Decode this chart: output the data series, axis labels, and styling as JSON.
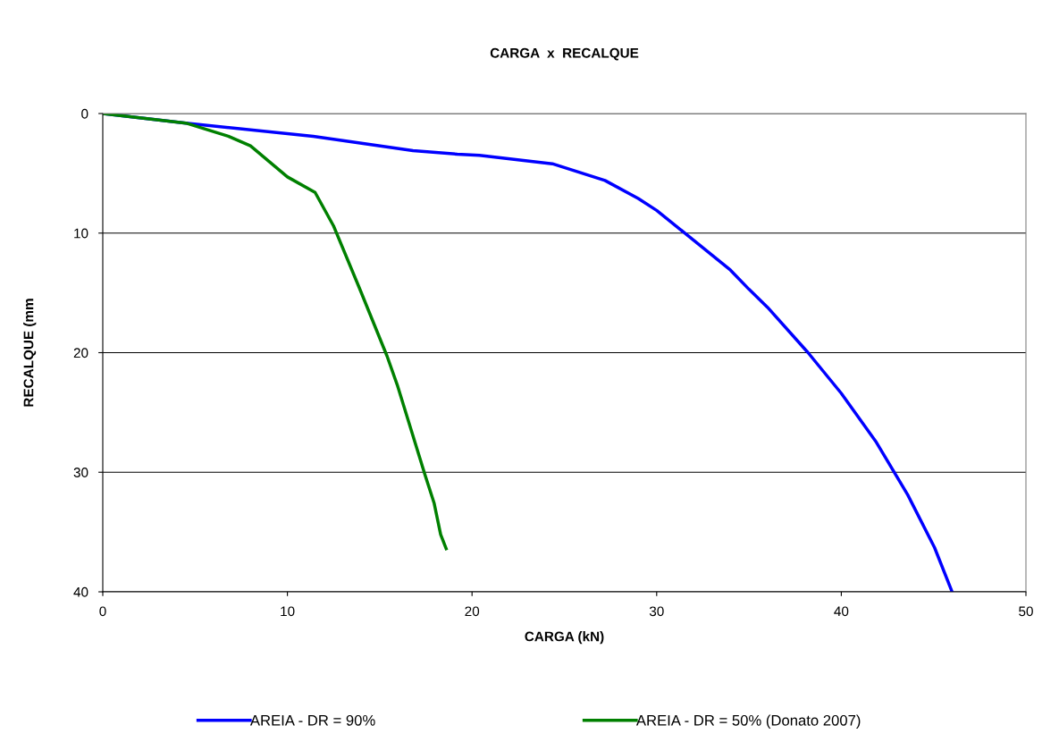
{
  "chart_data": {
    "type": "line",
    "title": "CARGA  x  RECALQUE",
    "xlabel": "CARGA (kN)",
    "ylabel": "RECALQUE (mm",
    "xlim": [
      0,
      50
    ],
    "xticks": [
      0,
      10,
      20,
      30,
      40,
      50
    ],
    "ylim": [
      40,
      0
    ],
    "yticks": [
      0,
      10,
      20,
      30,
      40
    ],
    "grid": "y",
    "legend": "bottom",
    "marker": "none",
    "line_style": "solid",
    "series": [
      {
        "name": "AREIA - DR = 90%",
        "color": "#0000ff",
        "x": [
          0,
          4.5,
          11.4,
          16.8,
          19.2,
          20.4,
          24.35,
          27.2,
          29.0,
          30.0,
          34.0,
          35.0,
          36.0,
          38.2,
          40.0,
          41.9,
          43.6,
          45.05,
          46.0
        ],
        "values": [
          0,
          0.8,
          1.9,
          3.1,
          3.4,
          3.5,
          4.2,
          5.6,
          7.1,
          8.1,
          13.1,
          14.7,
          16.2,
          20.0,
          23.4,
          27.5,
          31.9,
          36.3,
          40.0
        ]
      },
      {
        "name": "AREIA - DR = 50% (Donato 2007)",
        "color": "#008000",
        "x": [
          0,
          4.5,
          6.8,
          8.0,
          10.0,
          11.5,
          12.5,
          13.9,
          15.4,
          15.95,
          17.45,
          17.95,
          18.3,
          18.6
        ],
        "values": [
          0,
          0.8,
          1.9,
          2.7,
          5.3,
          6.6,
          9.4,
          14.6,
          20.3,
          22.7,
          30.2,
          32.6,
          35.2,
          36.4
        ]
      }
    ]
  }
}
